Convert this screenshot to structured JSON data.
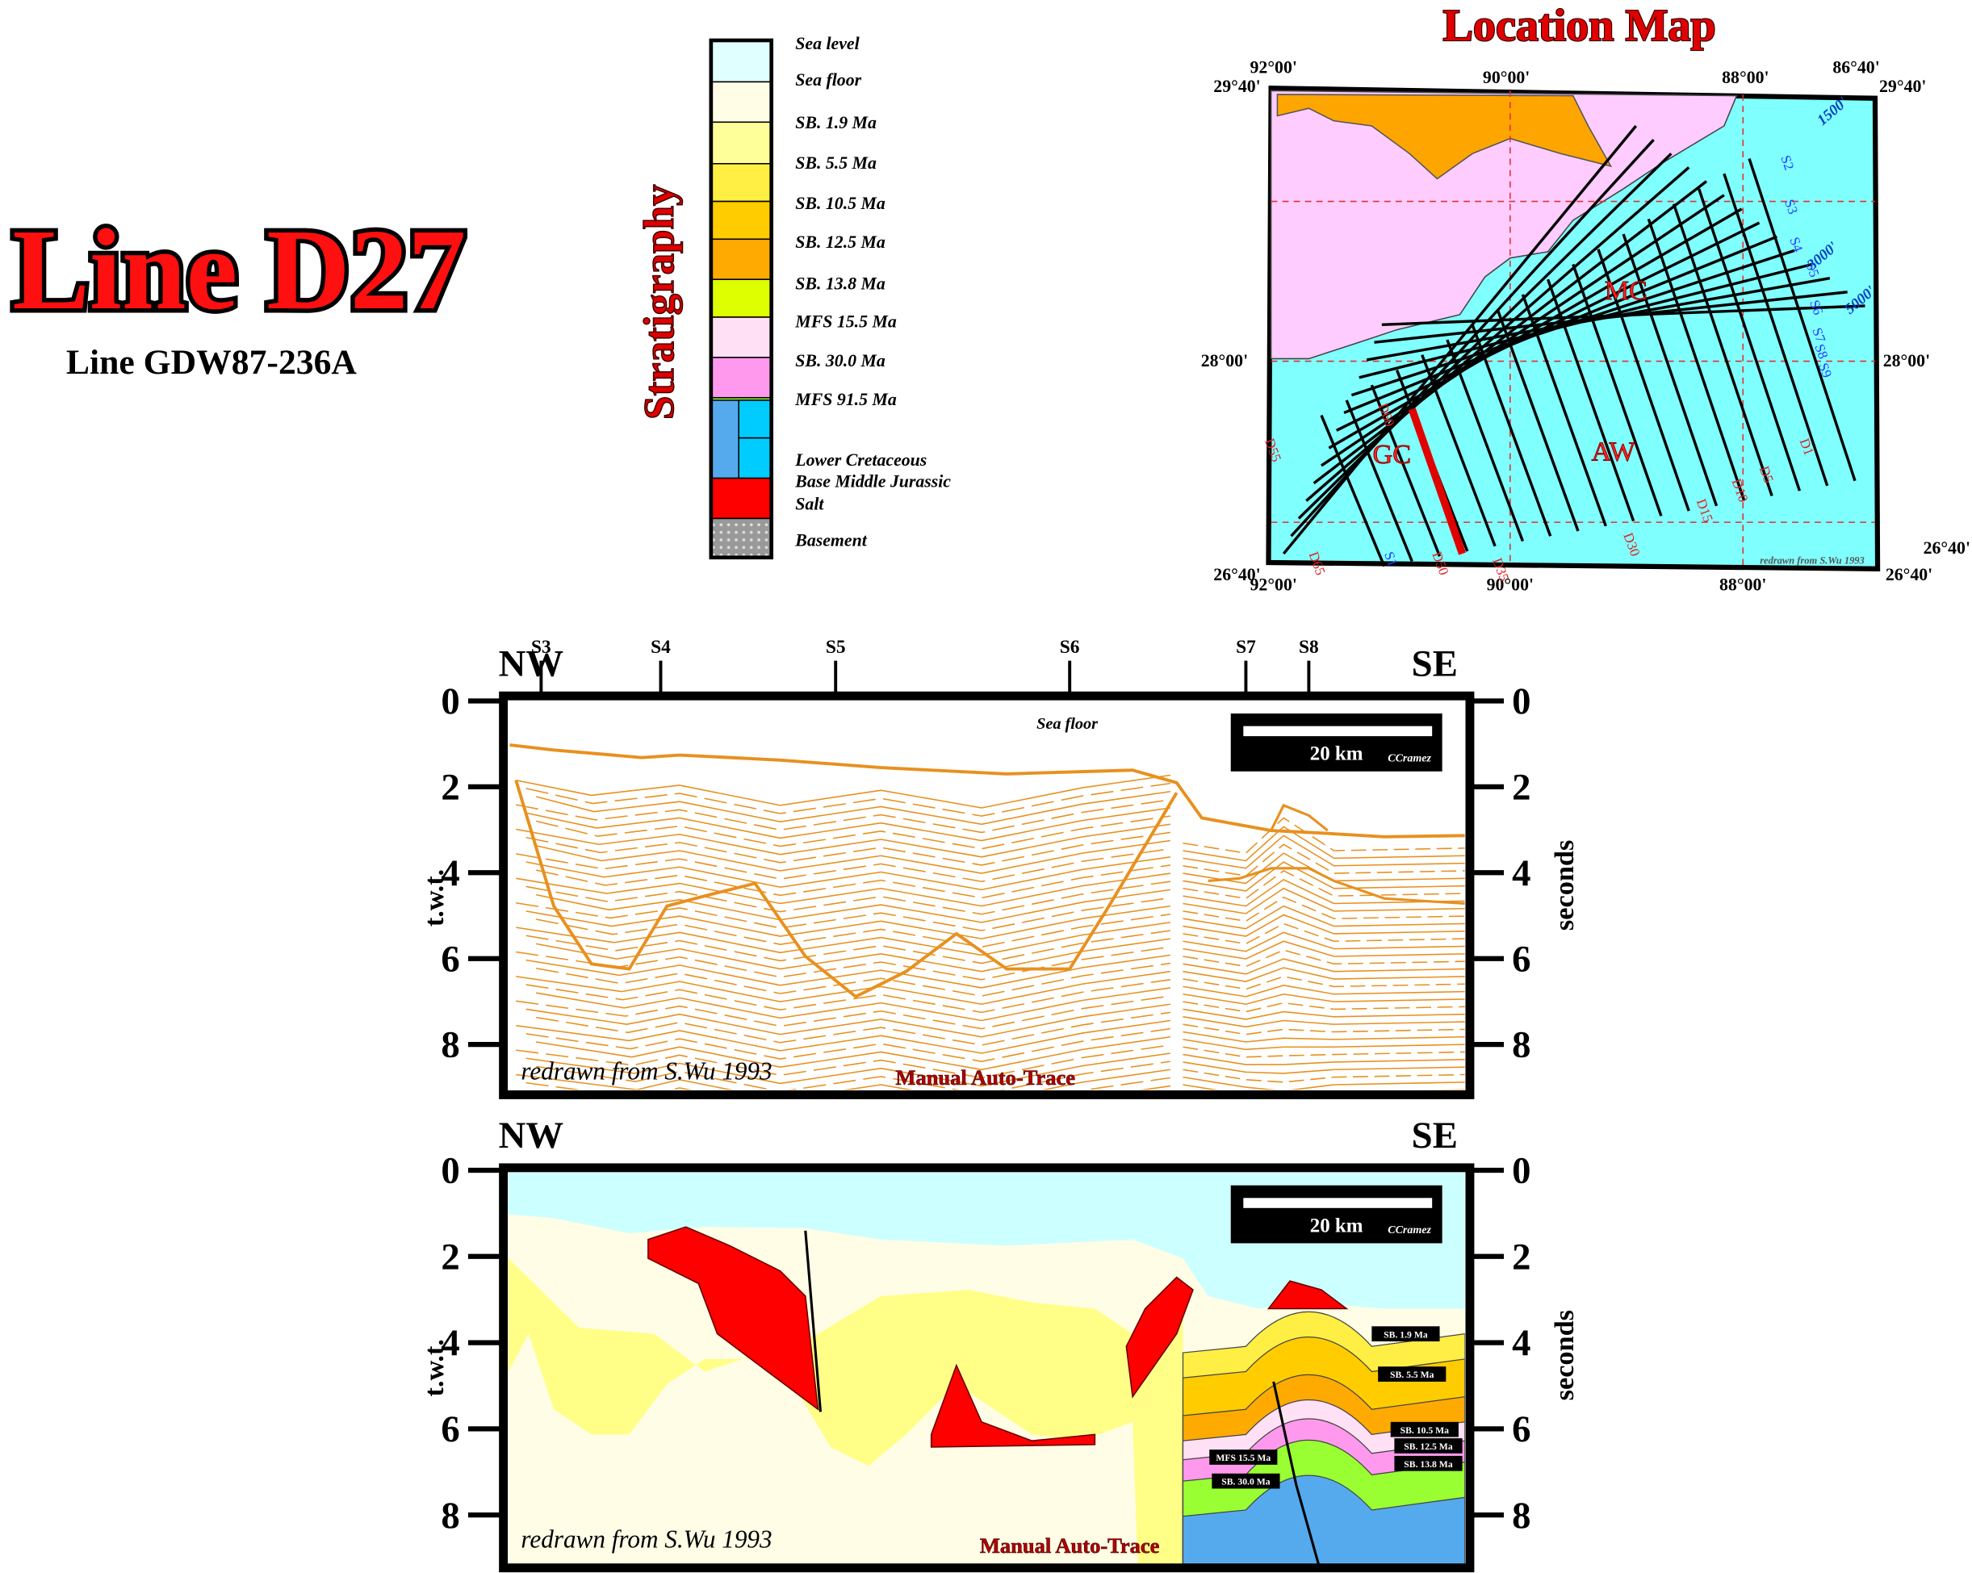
{
  "header": {
    "title": "Line D27",
    "subtitle": "Line GDW87-236A"
  },
  "stratigraphy": {
    "label": "Stratigraphy",
    "entries": [
      {
        "label": "Sea level",
        "color": "#e0ffff"
      },
      {
        "label": "Sea floor",
        "color": "#fffde6"
      },
      {
        "label": "SB. 1.9 Ma",
        "color": "#ffff99"
      },
      {
        "label": "SB. 5.5 Ma",
        "color": "#ffee44"
      },
      {
        "label": "SB. 10.5 Ma",
        "color": "#ffcc00"
      },
      {
        "label": "SB. 12.5 Ma",
        "color": "#ffaa00"
      },
      {
        "label": "SB. 13.8 Ma",
        "color": "#ddff00"
      },
      {
        "label": "MFS 15.5 Ma",
        "color": "#ffe0f4"
      },
      {
        "label": "SB. 30.0 Ma",
        "color": "#ff99ee"
      },
      {
        "label": "MFS 91.5 Ma",
        "color": "#99ff33"
      },
      {
        "label": "Lower Cretaceous",
        "color": "#55aaee"
      },
      {
        "label": "Base Middle Jurassic",
        "color": "#00ccff"
      },
      {
        "label": "Salt",
        "color": "#ff0000"
      },
      {
        "label": "Basement",
        "color": "#999999"
      }
    ]
  },
  "map": {
    "title": "Location Map",
    "coords": [
      "92°00'",
      "29°40'",
      "90°00'",
      "88°00'",
      "86°40'",
      "29°40'",
      "28°00'",
      "28°00'",
      "26°40'",
      "26°40'",
      "26°40'",
      "92°00'",
      "90°00'",
      "88°00'"
    ],
    "regions": [
      "MC",
      "GC",
      "AW"
    ],
    "contours": [
      "1500'",
      "3000'",
      "5000'"
    ],
    "lines": [
      "D1",
      "D5",
      "D10",
      "D15",
      "D30",
      "D35",
      "D50",
      "D55",
      "D60",
      "D65",
      "S1",
      "S2",
      "S3",
      "S4",
      "S5",
      "S6",
      "S7",
      "S8",
      "S9"
    ],
    "credit": "redrawn from S.Wu 1993"
  },
  "sections": [
    {
      "left": "NW",
      "right": "SE",
      "yticks": [
        0,
        2,
        4,
        6,
        8
      ],
      "y2ticks": [
        0,
        2,
        4,
        6,
        8
      ],
      "ylabel": "t.w.t.",
      "y2label": "seconds",
      "wells": [
        "S3",
        "S4",
        "S5",
        "S6",
        "S7",
        "S8"
      ],
      "note": "Sea floor",
      "scale": "20 km",
      "author": "CCramez",
      "credit": "redrawn from S.Wu 1993",
      "method": "Manual Auto-Trace"
    },
    {
      "left": "NW",
      "right": "SE",
      "yticks": [
        0,
        2,
        4,
        6,
        8
      ],
      "y2ticks": [
        0,
        2,
        4,
        6,
        8
      ],
      "ylabel": "t.w.t.",
      "y2label": "seconds",
      "scale": "20 km",
      "author": "CCramez",
      "credit": "redrawn from S.Wu 1993",
      "method": "Manual Auto-Trace",
      "horizons": [
        "SB. 1.9 Ma",
        "SB. 5.5 Ma",
        "SB. 10.5 Ma",
        "SB. 12.5 Ma",
        "SB. 13.8 Ma",
        "MFS 15.5 Ma",
        "SB. 30.0 Ma"
      ]
    }
  ]
}
